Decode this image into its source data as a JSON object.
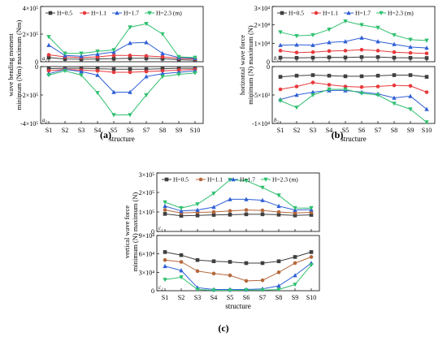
{
  "colors": {
    "H=0.5": "#3f3f3f",
    "H=1.1": "#e8393c",
    "H=1.1c": "#b5683c",
    "H=1.7": "#2f5fd6",
    "H=2.3": "#2fc06f"
  },
  "panels": [
    {
      "caption": "(a)",
      "xlabel": "structure",
      "ylabel_lines": [
        "wave bending moment",
        "minimum (Nm)    maximum (Nm)"
      ],
      "legend": [
        "H=0.5",
        "H=1.1",
        "H=1.7",
        "H=2.3 (m)"
      ],
      "sub_top": "a",
      "sub_bottom": "a",
      "categories": [
        "S1",
        "S2",
        "S3",
        "S4",
        "S5",
        "S6",
        "S7",
        "S8",
        "S9",
        "S10"
      ]
    },
    {
      "caption": "(b)",
      "xlabel": "structure",
      "ylabel_lines": [
        "horizontal wave force",
        "minimum (N)      maximum (N)"
      ],
      "legend": [
        "H=0.5",
        "H=1.1",
        "H=1.7",
        "H=2.3 (m)"
      ],
      "sub_top": "b",
      "sub_bottom": "b",
      "categories": [
        "S1",
        "S2",
        "S3",
        "S4",
        "S5",
        "S6",
        "S7",
        "S8",
        "S9",
        "S10"
      ]
    },
    {
      "caption": "(c)",
      "xlabel": "structure",
      "ylabel_lines": [
        "vertical wave force",
        "minimum (N)      maximum (N)"
      ],
      "legend": [
        "H=0.5",
        "H=1.1",
        "H=1.7",
        "H=2.3 (m)"
      ],
      "sub_top": "c",
      "sub_bottom": "c",
      "categories": [
        "S1",
        "S2",
        "S3",
        "S4",
        "S5",
        "S6",
        "S7",
        "S8",
        "S9",
        "S10"
      ]
    }
  ],
  "chart_data": [
    {
      "type": "line",
      "panel": "a-top",
      "categories": [
        "S1",
        "S2",
        "S3",
        "S4",
        "S5",
        "S6",
        "S7",
        "S8",
        "S9",
        "S10"
      ],
      "ylim": [
        0,
        400000
      ],
      "yticks": [
        0,
        200000,
        400000
      ],
      "ytick_labels": [
        "0",
        "2×10⁵",
        "4×10⁵"
      ],
      "series": [
        {
          "name": "H=0.5",
          "values": [
            30000,
            20000,
            18000,
            20000,
            22000,
            25000,
            25000,
            22000,
            15000,
            10000
          ]
        },
        {
          "name": "H=1.1",
          "values": [
            50000,
            35000,
            30000,
            35000,
            45000,
            45000,
            42000,
            35000,
            25000,
            20000
          ]
        },
        {
          "name": "H=1.7",
          "values": [
            120000,
            45000,
            40000,
            55000,
            70000,
            135000,
            140000,
            60000,
            30000,
            25000
          ]
        },
        {
          "name": "H=2.3 (m)",
          "values": [
            180000,
            60000,
            60000,
            75000,
            85000,
            250000,
            275000,
            200000,
            35000,
            30000
          ]
        }
      ]
    },
    {
      "type": "line",
      "panel": "a-bottom",
      "categories": [
        "S1",
        "S2",
        "S3",
        "S4",
        "S5",
        "S6",
        "S7",
        "S8",
        "S9",
        "S10"
      ],
      "ylim": [
        -400000,
        0
      ],
      "yticks": [
        -400000,
        -200000,
        0
      ],
      "ytick_labels": [
        "-4×10⁵",
        "-2×10⁵",
        "0"
      ],
      "series": [
        {
          "name": "H=0.5",
          "values": [
            -15000,
            -12000,
            -12000,
            -15000,
            -18000,
            -18000,
            -18000,
            -15000,
            -12000,
            -12000
          ]
        },
        {
          "name": "H=1.1",
          "values": [
            -30000,
            -20000,
            -25000,
            -30000,
            -40000,
            -40000,
            -35000,
            -30000,
            -25000,
            -20000
          ]
        },
        {
          "name": "H=1.7",
          "values": [
            -50000,
            -20000,
            -35000,
            -60000,
            -180000,
            -180000,
            -70000,
            -50000,
            -40000,
            -30000
          ]
        },
        {
          "name": "H=2.3 (m)",
          "values": [
            -60000,
            -30000,
            -60000,
            -185000,
            -340000,
            -340000,
            -200000,
            -70000,
            -55000,
            -45000
          ]
        }
      ]
    },
    {
      "type": "line",
      "panel": "b-top",
      "categories": [
        "S1",
        "S2",
        "S3",
        "S4",
        "S5",
        "S6",
        "S7",
        "S8",
        "S9",
        "S10"
      ],
      "ylim": [
        0,
        30000
      ],
      "yticks": [
        0,
        10000,
        20000,
        30000
      ],
      "ytick_labels": [
        "0",
        "1×10⁴",
        "2×10⁴",
        "3×10⁴"
      ],
      "series": [
        {
          "name": "H=0.5",
          "values": [
            2200,
            2100,
            2200,
            2400,
            2300,
            2500,
            2500,
            2200,
            2100,
            2000
          ]
        },
        {
          "name": "H=1.1",
          "values": [
            6000,
            5000,
            5200,
            5800,
            6000,
            6500,
            6000,
            5200,
            4800,
            4500
          ]
        },
        {
          "name": "H=1.7",
          "values": [
            9000,
            9200,
            9000,
            10500,
            11000,
            13000,
            11000,
            9500,
            8000,
            7500
          ]
        },
        {
          "name": "H=2.3 (m)",
          "values": [
            16000,
            14000,
            14500,
            17500,
            22000,
            20000,
            18500,
            14500,
            12000,
            11500
          ]
        }
      ]
    },
    {
      "type": "line",
      "panel": "b-bottom",
      "categories": [
        "S1",
        "S2",
        "S3",
        "S4",
        "S5",
        "S6",
        "S7",
        "S8",
        "S9",
        "S10"
      ],
      "ylim": [
        -10000,
        0
      ],
      "yticks": [
        -10000,
        -5000,
        0
      ],
      "ytick_labels": [
        "-1×10⁴",
        "-5×10³",
        "0"
      ],
      "series": [
        {
          "name": "H=0.5",
          "values": [
            -1800,
            -1600,
            -1500,
            -1600,
            -1700,
            -1700,
            -1600,
            -1500,
            -1500,
            -1800
          ]
        },
        {
          "name": "H=1.1",
          "values": [
            -4000,
            -3500,
            -2800,
            -3200,
            -3500,
            -3600,
            -3500,
            -3300,
            -3400,
            -4500
          ]
        },
        {
          "name": "H=1.7",
          "values": [
            -5800,
            -5000,
            -4500,
            -4200,
            -4200,
            -4500,
            -4800,
            -5500,
            -5200,
            -7500
          ]
        },
        {
          "name": "H=2.3 (m)",
          "values": [
            -6000,
            -7200,
            -5000,
            -4000,
            -4000,
            -4700,
            -5000,
            -6500,
            -7500,
            -9800
          ]
        }
      ]
    },
    {
      "type": "line",
      "panel": "c-top",
      "categories": [
        "S1",
        "S2",
        "S3",
        "S4",
        "S5",
        "S6",
        "S7",
        "S8",
        "S9",
        "S10"
      ],
      "ylim": [
        0,
        300000
      ],
      "yticks": [
        0,
        100000,
        200000,
        300000
      ],
      "ytick_labels": [
        "0",
        "1×10⁵",
        "2×10⁵",
        "3×10⁵"
      ],
      "series": [
        {
          "name": "H=0.5",
          "values": [
            90000,
            80000,
            82000,
            85000,
            86000,
            88000,
            88000,
            86000,
            82000,
            85000
          ]
        },
        {
          "name": "H=1.1",
          "values": [
            110000,
            95000,
            98000,
            100000,
            105000,
            110000,
            108000,
            100000,
            95000,
            98000
          ]
        },
        {
          "name": "H=1.7",
          "values": [
            130000,
            105000,
            110000,
            125000,
            165000,
            165000,
            160000,
            130000,
            110000,
            112000
          ]
        },
        {
          "name": "H=2.3 (m)",
          "values": [
            150000,
            120000,
            140000,
            195000,
            265000,
            260000,
            225000,
            185000,
            120000,
            120000
          ]
        }
      ]
    },
    {
      "type": "line",
      "panel": "c-bottom",
      "categories": [
        "S1",
        "S2",
        "S3",
        "S4",
        "S5",
        "S6",
        "S7",
        "S8",
        "S9",
        "S10"
      ],
      "ylim": [
        0,
        90000
      ],
      "yticks": [
        0,
        30000,
        60000,
        90000
      ],
      "ytick_labels": [
        "0",
        "3×10⁴",
        "6×10⁴",
        "9×10⁴"
      ],
      "series": [
        {
          "name": "H=0.5",
          "values": [
            63000,
            58000,
            50000,
            48000,
            47000,
            45000,
            45000,
            48000,
            55000,
            63000
          ]
        },
        {
          "name": "H=1.1",
          "values": [
            50000,
            47000,
            32000,
            28000,
            25000,
            16000,
            17000,
            30000,
            45000,
            55000
          ]
        },
        {
          "name": "H=1.7",
          "values": [
            40000,
            33000,
            5000,
            2000,
            2000,
            2000,
            3000,
            8000,
            25000,
            45000
          ]
        },
        {
          "name": "H=2.3 (m)",
          "values": [
            18000,
            22000,
            2000,
            500,
            500,
            1000,
            1000,
            2000,
            10000,
            42000
          ]
        }
      ]
    }
  ]
}
